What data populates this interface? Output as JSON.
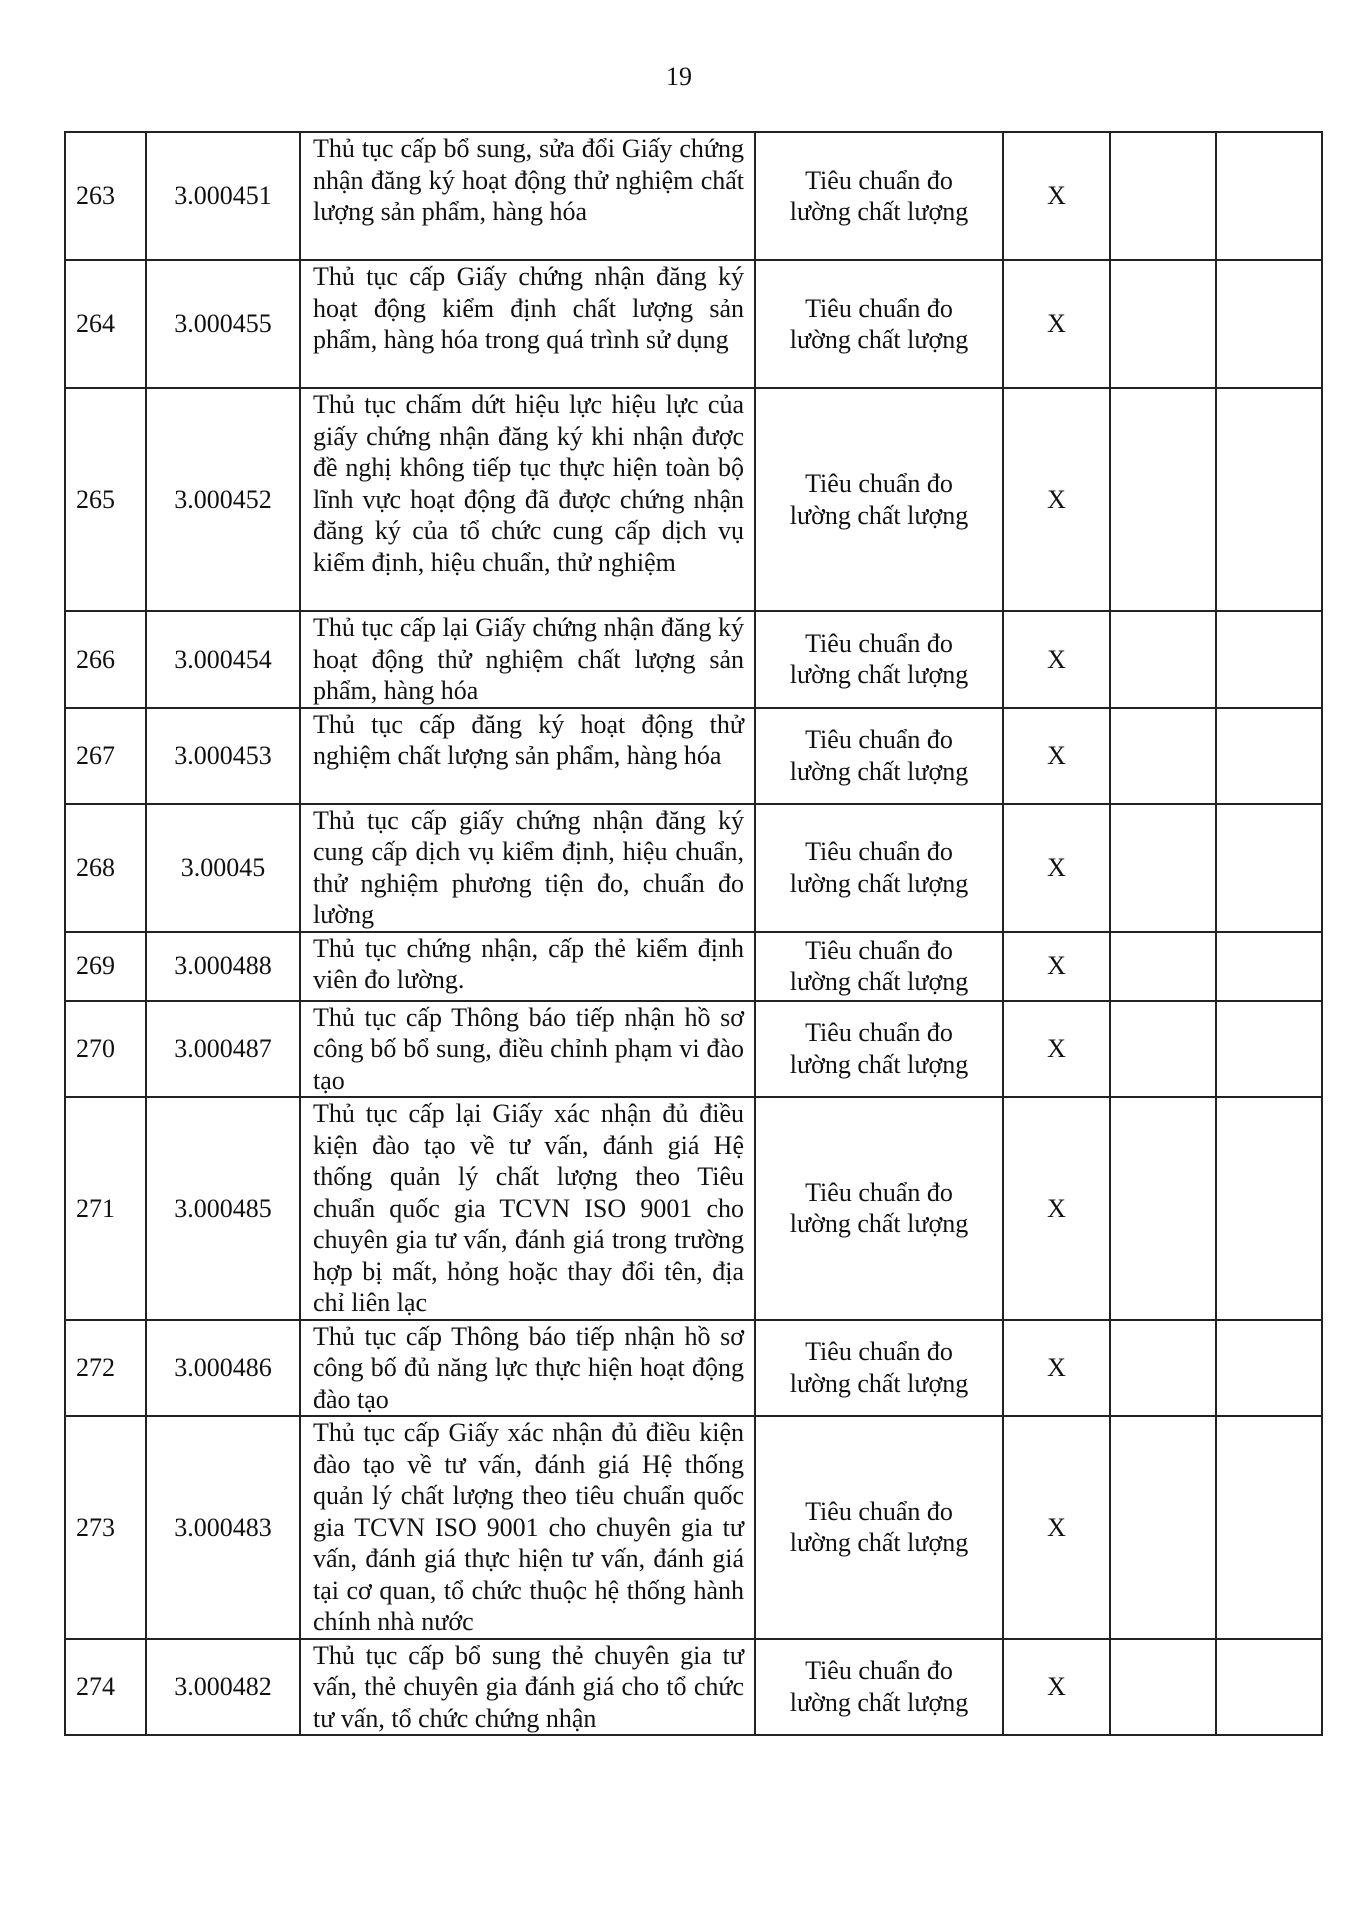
{
  "page_number": "19",
  "rows": [
    {
      "no": "263",
      "code": "3.000451",
      "name": "Thủ tục cấp bổ sung, sửa đổi Giấy chứng nhận đăng ký hoạt động thử nghiệm chất lượng sản phẩm, hàng hóa",
      "field": "Tiêu chuẩn đo lường chất lượng",
      "mark": "X"
    },
    {
      "no": "264",
      "code": "3.000455",
      "name": "Thủ tục cấp Giấy chứng nhận đăng ký hoạt động kiểm định chất lượng sản phẩm, hàng hóa trong quá trình sử dụng",
      "field": "Tiêu chuẩn đo lường chất lượng",
      "mark": "X"
    },
    {
      "no": "265",
      "code": "3.000452",
      "name": "Thủ tục chấm dứt hiệu lực hiệu lực của giấy chứng nhận đăng ký khi nhận được đề nghị không tiếp tục thực hiện toàn bộ lĩnh vực hoạt động đã được chứng nhận đăng ký của tổ chức cung cấp dịch vụ kiểm định, hiệu chuẩn, thử nghiệm",
      "field": "Tiêu chuẩn đo lường chất lượng",
      "mark": "X"
    },
    {
      "no": "266",
      "code": "3.000454",
      "name": "Thủ tục cấp lại Giấy chứng nhận đăng ký hoạt động thử nghiệm chất lượng sản phẩm, hàng hóa",
      "field": "Tiêu chuẩn đo lường chất lượng",
      "mark": "X"
    },
    {
      "no": "267",
      "code": "3.000453",
      "name": "Thủ tục cấp đăng ký hoạt động thử nghiệm chất lượng sản phẩm, hàng hóa",
      "field": "Tiêu chuẩn đo lường chất lượng",
      "mark": "X"
    },
    {
      "no": "268",
      "code": "3.00045",
      "name": "Thủ tục cấp giấy chứng nhận đăng ký cung cấp dịch vụ kiểm định, hiệu chuẩn, thử nghiệm phương tiện đo, chuẩn đo lường",
      "field": "Tiêu chuẩn đo lường chất lượng",
      "mark": "X"
    },
    {
      "no": "269",
      "code": "3.000488",
      "name": "Thủ tục chứng nhận, cấp thẻ kiểm định viên đo lường.",
      "field": "Tiêu chuẩn đo lường chất lượng",
      "mark": "X"
    },
    {
      "no": "270",
      "code": "3.000487",
      "name": "Thủ tục cấp Thông báo tiếp nhận hồ sơ công bố bổ sung, điều chỉnh phạm vi đào tạo",
      "field": "Tiêu chuẩn đo lường chất lượng",
      "mark": "X"
    },
    {
      "no": "271",
      "code": "3.000485",
      "name": "Thủ tục cấp lại Giấy xác nhận đủ điều kiện đào tạo về tư vấn, đánh giá Hệ thống quản lý chất lượng theo Tiêu chuẩn quốc gia TCVN ISO 9001 cho chuyên gia tư vấn, đánh giá trong trường hợp bị mất, hỏng hoặc thay đổi tên, địa chỉ liên lạc",
      "field": "Tiêu chuẩn đo lường chất lượng",
      "mark": "X"
    },
    {
      "no": "272",
      "code": "3.000486",
      "name": "Thủ tục cấp Thông báo tiếp nhận hồ sơ công bố đủ năng lực thực hiện hoạt động đào tạo",
      "field": "Tiêu chuẩn đo lường chất lượng",
      "mark": "X"
    },
    {
      "no": "273",
      "code": "3.000483",
      "name": "Thủ tục cấp Giấy xác nhận đủ điều kiện đào tạo về tư vấn, đánh giá Hệ thống quản lý chất lượng theo tiêu chuẩn quốc gia TCVN ISO 9001 cho chuyên gia tư vấn, đánh giá thực hiện tư vấn, đánh giá tại cơ quan, tổ chức thuộc hệ thống hành chính nhà nước",
      "field": "Tiêu chuẩn đo lường chất lượng",
      "mark": "X"
    },
    {
      "no": "274",
      "code": "3.000482",
      "name": "Thủ tục cấp bổ sung thẻ chuyên gia tư vấn, thẻ chuyên gia đánh giá cho tổ chức tư vấn, tổ chức chứng nhận",
      "field": "Tiêu chuẩn đo lường chất lượng",
      "mark": "X"
    }
  ]
}
